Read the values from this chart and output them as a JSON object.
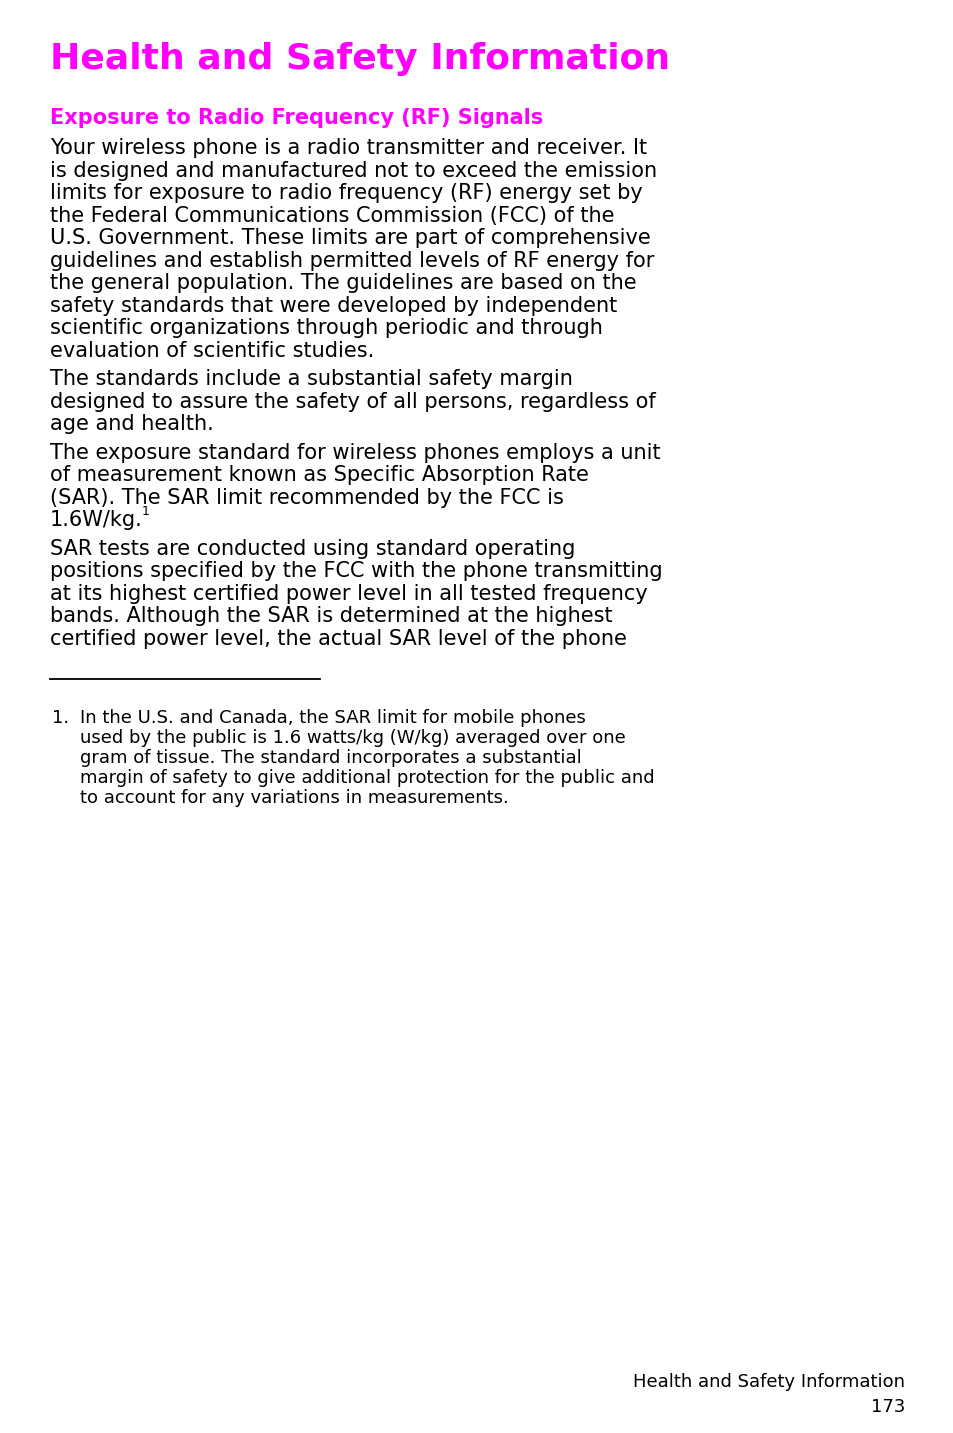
{
  "bg_color": "#ffffff",
  "magenta": "#FF00FF",
  "black": "#000000",
  "title": "Health and Safety Information",
  "subtitle": "Exposure to Radio Frequency (RF) Signals",
  "para1_lines": [
    "Your wireless phone is a radio transmitter and receiver. It",
    "is designed and manufactured not to exceed the emission",
    "limits for exposure to radio frequency (RF) energy set by",
    "the Federal Communications Commission (FCC) of the",
    "U.S. Government. These limits are part of comprehensive",
    "guidelines and establish permitted levels of RF energy for",
    "the general population. The guidelines are based on the",
    "safety standards that were developed by independent",
    "scientific organizations through periodic and through",
    "evaluation of scientific studies."
  ],
  "para2_lines": [
    "The standards include a substantial safety margin",
    "designed to assure the safety of all persons, regardless of",
    "age and health."
  ],
  "para3_lines": [
    "The exposure standard for wireless phones employs a unit",
    "of measurement known as Specific Absorption Rate",
    "(SAR). The SAR limit recommended by the FCC is",
    "1.6W/kg."
  ],
  "para3_super": "1",
  "para4_lines": [
    "SAR tests are conducted using standard operating",
    "positions specified by the FCC with the phone transmitting",
    "at its highest certified power level in all tested frequency",
    "bands. Although the SAR is determined at the highest",
    "certified power level, the actual SAR level of the phone"
  ],
  "footnote_number": "1.",
  "footnote_lines": [
    "In the U.S. and Canada, the SAR limit for mobile phones",
    "used by the public is 1.6 watts/kg (W/kg) averaged over one",
    "gram of tissue. The standard incorporates a substantial",
    "margin of safety to give additional protection for the public and",
    "to account for any variations in measurements."
  ],
  "footer_line1": "Health and Safety Information",
  "footer_line2": "173",
  "title_fontsize": 26,
  "subtitle_fontsize": 15,
  "body_fontsize": 15,
  "footnote_fontsize": 13,
  "footer_fontsize": 13
}
